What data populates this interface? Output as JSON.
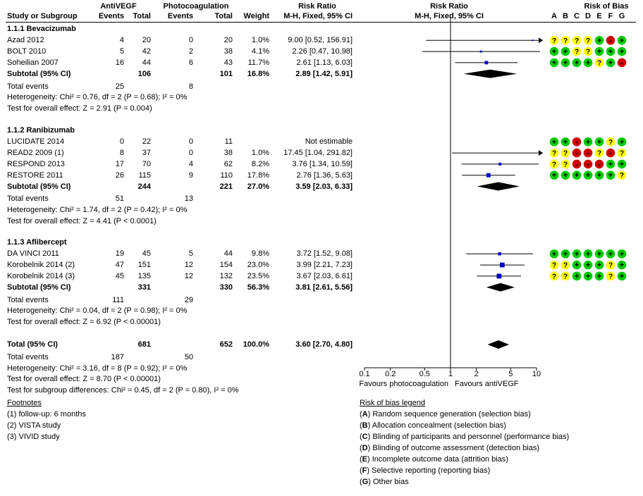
{
  "header": {
    "group1": "AntiVEGF",
    "group2": "Photocoagulation",
    "rr_title": "Risk Ratio",
    "rr_method": "M-H, Fixed, 95% CI",
    "plot_title": "Risk Ratio",
    "plot_method": "M-H, Fixed, 95% CI",
    "rob_title": "Risk of Bias",
    "study_col": "Study or Subgroup",
    "events1": "Events",
    "total1": "Total",
    "events2": "Events",
    "total2": "Total",
    "weight": "Weight",
    "rob_letters": [
      "A",
      "B",
      "C",
      "D",
      "E",
      "F",
      "G"
    ]
  },
  "subgroups": [
    {
      "title": "1.1.1 Bevacizumab",
      "studies": [
        {
          "name": "Azad 2012",
          "e1": "4",
          "n1": "20",
          "e2": "0",
          "n2": "20",
          "w": "1.0%",
          "ci": "9.00 [0.52, 156.91]",
          "rob": [
            "?",
            "?",
            "?",
            "?",
            "+",
            "-",
            "+"
          ]
        },
        {
          "name": "BOLT 2010",
          "e1": "5",
          "n1": "42",
          "e2": "2",
          "n2": "38",
          "w": "4.1%",
          "ci": "2.26 [0.47, 10.98]",
          "rob": [
            "+",
            "+",
            "?",
            "?",
            "+",
            "+",
            "+"
          ]
        },
        {
          "name": "Soheilian 2007",
          "e1": "16",
          "n1": "44",
          "e2": "6",
          "n2": "43",
          "w": "11.7%",
          "ci": "2.61 [1.13, 6.03]",
          "rob": [
            "+",
            "+",
            "+",
            "+",
            "?",
            "+",
            "-"
          ]
        }
      ],
      "subtotal": {
        "label": "Subtotal (95% CI)",
        "n1": "106",
        "n2": "101",
        "w": "16.8%",
        "ci": "2.89 [1.42, 5.91]"
      },
      "total_events": {
        "label": "Total events",
        "e1": "25",
        "e2": "8"
      },
      "heterogeneity": "Heterogeneity: Chi² = 0.76, df = 2 (P = 0.68); I² = 0%",
      "overall": "Test for overall effect: Z = 2.91 (P = 0.004)"
    },
    {
      "title": "1.1.2 Ranibizumab",
      "studies": [
        {
          "name": "LUCIDATE 2014",
          "e1": "0",
          "n1": "22",
          "e2": "0",
          "n2": "11",
          "w": "",
          "ci": "Not estimable",
          "rob": [
            "+",
            "+",
            "-",
            "+",
            "+",
            "?",
            "+"
          ]
        },
        {
          "name": "READ2 2009 (1)",
          "e1": "8",
          "n1": "37",
          "e2": "0",
          "n2": "38",
          "w": "1.0%",
          "ci": "17.45 [1.04, 291.82]",
          "rob": [
            "?",
            "?",
            "-",
            "-",
            "?",
            "-",
            "?"
          ]
        },
        {
          "name": "RESPOND 2013",
          "e1": "17",
          "n1": "70",
          "e2": "4",
          "n2": "62",
          "w": "8.2%",
          "ci": "3.76 [1.34, 10.59]",
          "rob": [
            "?",
            "?",
            "-",
            "-",
            "-",
            "+",
            "+"
          ]
        },
        {
          "name": "RESTORE 2011",
          "e1": "26",
          "n1": "115",
          "e2": "9",
          "n2": "110",
          "w": "17.8%",
          "ci": "2.76 [1.36, 5.63]",
          "rob": [
            "+",
            "+",
            "+",
            "+",
            "+",
            "+",
            "?"
          ]
        }
      ],
      "subtotal": {
        "label": "Subtotal (95% CI)",
        "n1": "244",
        "n2": "221",
        "w": "27.0%",
        "ci": "3.59 [2.03, 6.33]"
      },
      "total_events": {
        "label": "Total events",
        "e1": "51",
        "e2": "13"
      },
      "heterogeneity": "Heterogeneity: Chi² = 1.74, df = 2 (P = 0.42); I² = 0%",
      "overall": "Test for overall effect: Z = 4.41 (P < 0.0001)"
    },
    {
      "title": "1.1.3 Aflibercept",
      "studies": [
        {
          "name": "DA VINCI 2011",
          "e1": "19",
          "n1": "45",
          "e2": "5",
          "n2": "44",
          "w": "9.8%",
          "ci": "3.72 [1.52, 9.08]",
          "rob": [
            "+",
            "+",
            "+",
            "+",
            "+",
            "+",
            "+"
          ]
        },
        {
          "name": "Korobelnik 2014 (2)",
          "e1": "47",
          "n1": "151",
          "e2": "12",
          "n2": "154",
          "w": "23.0%",
          "ci": "3.99 [2.21, 7.23]",
          "rob": [
            "?",
            "?",
            "+",
            "+",
            "+",
            "?",
            "+"
          ]
        },
        {
          "name": "Korobelnik 2014 (3)",
          "e1": "45",
          "n1": "135",
          "e2": "12",
          "n2": "132",
          "w": "23.5%",
          "ci": "3.67 [2.03, 6.61]",
          "rob": [
            "?",
            "?",
            "+",
            "+",
            "+",
            "?",
            "+"
          ]
        }
      ],
      "subtotal": {
        "label": "Subtotal (95% CI)",
        "n1": "331",
        "n2": "330",
        "w": "56.3%",
        "ci": "3.81 [2.61, 5.56]"
      },
      "total_events": {
        "label": "Total events",
        "e1": "111",
        "e2": "29"
      },
      "heterogeneity": "Heterogeneity: Chi² = 0.04, df = 2 (P = 0.98); I² = 0%",
      "overall": "Test for overall effect: Z = 6.92 (P < 0.00001)"
    }
  ],
  "total": {
    "label": "Total (95% CI)",
    "n1": "681",
    "n2": "652",
    "w": "100.0%",
    "ci": "3.60 [2.70, 4.80]",
    "events_label": "Total events",
    "e1": "187",
    "e2": "50",
    "heterogeneity": "Heterogeneity: Chi² = 3.16, df = 8 (P = 0.92); I² = 0%",
    "overall": "Test for overall effect: Z = 8.70 (P < 0.00001)",
    "subgroup_diff": "Test for subgroup differences: Chi² = 0.45, df = 2 (P = 0.80), I² = 0%"
  },
  "footnotes": {
    "title": "Footnotes",
    "items": [
      "(1) follow-up: 6 months",
      "(2) VISTA study",
      "(3) VIVID study"
    ]
  },
  "legend": {
    "title": "Risk of bias legend",
    "items": [
      {
        "letter": "A",
        "text": " Random sequence generation (selection bias)"
      },
      {
        "letter": "B",
        "text": " Allocation concealment (selection bias)"
      },
      {
        "letter": "C",
        "text": " Blinding of participants and personnel (performance bias)"
      },
      {
        "letter": "D",
        "text": " Blinding of outcome assessment (detection bias)"
      },
      {
        "letter": "E",
        "text": " Incomplete outcome data (attrition bias)"
      },
      {
        "letter": "F",
        "text": " Selective reporting (reporting bias)"
      },
      {
        "letter": "G",
        "text": " Other bias"
      }
    ]
  },
  "colors": {
    "low": "#00cc00",
    "unclear": "#ffff00",
    "high": "#cc0000",
    "marker": "#0000cc"
  },
  "chart_data": {
    "type": "forest",
    "axis_scale": "log",
    "xlim": [
      0.1,
      10
    ],
    "ticks": [
      {
        "value": 0.1,
        "label": "0.1"
      },
      {
        "value": 0.2,
        "label": "0.2"
      },
      {
        "value": 0.5,
        "label": "0.5"
      },
      {
        "value": 1,
        "label": "1"
      },
      {
        "value": 2,
        "label": "2"
      },
      {
        "value": 5,
        "label": "5"
      },
      {
        "value": 10,
        "label": "10"
      }
    ],
    "favours_left": "Favours photocoagulation",
    "favours_right": "Favours antiVEGF",
    "points": [
      {
        "study": "Azad 2012",
        "rr": 9.0,
        "lo": 0.52,
        "hi": 156.91,
        "weight": 1.0
      },
      {
        "study": "BOLT 2010",
        "rr": 2.26,
        "lo": 0.47,
        "hi": 10.98,
        "weight": 4.1
      },
      {
        "study": "Soheilian 2007",
        "rr": 2.61,
        "lo": 1.13,
        "hi": 6.03,
        "weight": 11.7
      },
      {
        "study": "Subtotal 1.1.1",
        "rr": 2.89,
        "lo": 1.42,
        "hi": 5.91,
        "diamond": true
      },
      {
        "study": "READ2 2009 (1)",
        "rr": 17.45,
        "lo": 1.04,
        "hi": 291.82,
        "weight": 1.0
      },
      {
        "study": "RESPOND 2013",
        "rr": 3.76,
        "lo": 1.34,
        "hi": 10.59,
        "weight": 8.2
      },
      {
        "study": "RESTORE 2011",
        "rr": 2.76,
        "lo": 1.36,
        "hi": 5.63,
        "weight": 17.8
      },
      {
        "study": "Subtotal 1.1.2",
        "rr": 3.59,
        "lo": 2.03,
        "hi": 6.33,
        "diamond": true
      },
      {
        "study": "DA VINCI 2011",
        "rr": 3.72,
        "lo": 1.52,
        "hi": 9.08,
        "weight": 9.8
      },
      {
        "study": "Korobelnik 2014 (2)",
        "rr": 3.99,
        "lo": 2.21,
        "hi": 7.23,
        "weight": 23.0
      },
      {
        "study": "Korobelnik 2014 (3)",
        "rr": 3.67,
        "lo": 2.03,
        "hi": 6.61,
        "weight": 23.5
      },
      {
        "study": "Subtotal 1.1.3",
        "rr": 3.81,
        "lo": 2.61,
        "hi": 5.56,
        "diamond": true
      },
      {
        "study": "Total",
        "rr": 3.6,
        "lo": 2.7,
        "hi": 4.8,
        "diamond": true
      }
    ]
  }
}
